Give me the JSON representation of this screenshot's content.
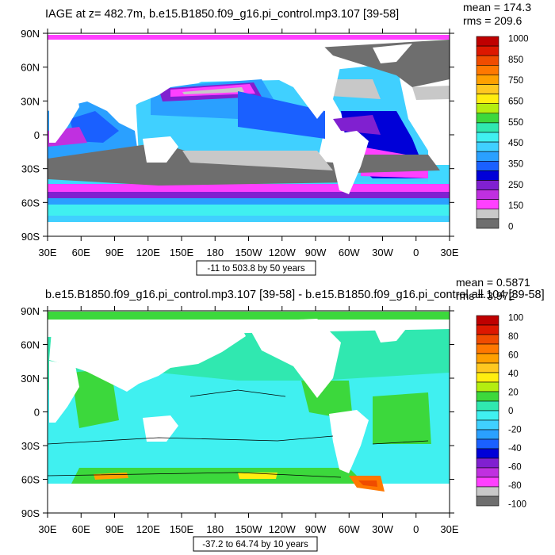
{
  "panels": [
    {
      "title": "IAGE at z= 482.7m, b.e15.B1850.f09_g16.pi_control.mp3.107 [39-58]",
      "stats": [
        "mean = 174.3",
        "rms = 209.6"
      ],
      "contour_info": "-11 to 503.8 by 50 years",
      "colorbar_labels": [
        "1000",
        "850",
        "750",
        "650",
        "550",
        "450",
        "350",
        "250",
        "150",
        "0"
      ],
      "colors": [
        "#bf0000",
        "#dd1800",
        "#f04c00",
        "#ff7800",
        "#ffa000",
        "#ffc820",
        "#ffee10",
        "#b4ee10",
        "#3cd83c",
        "#30e8b0",
        "#40f0f0",
        "#40d0ff",
        "#2aa0ff",
        "#1a60ff",
        "#0000d8",
        "#8020d0",
        "#c030e0",
        "#ff40ff",
        "#c8c8c8",
        "#6e6e6e"
      ]
    },
    {
      "title": "b.e15.B1850.f09_g16.pi_control.mp3.107 [39-58] - b.e15.B1850.f09_g16.pi_control.all.104 [39-58]",
      "stats": [
        "mean = 0.5871",
        "rms = 3.972"
      ],
      "contour_info": "-37.2 to 64.74 by 10 years",
      "colorbar_labels": [
        "100",
        "80",
        "60",
        "40",
        "20",
        "0",
        "-20",
        "-40",
        "-60",
        "-80",
        "-100"
      ],
      "colors": [
        "#bf0000",
        "#dd1800",
        "#f04c00",
        "#ff7800",
        "#ffa000",
        "#ffc820",
        "#ffee10",
        "#b4ee10",
        "#3cd83c",
        "#30e8b0",
        "#40f0f0",
        "#40d0ff",
        "#2aa0ff",
        "#1a60ff",
        "#0000d8",
        "#8020d0",
        "#c030e0",
        "#ff40ff",
        "#c8c8c8",
        "#6e6e6e"
      ]
    }
  ],
  "axes": {
    "lat_labels": [
      "90N",
      "60N",
      "30N",
      "0",
      "30S",
      "60S",
      "90S"
    ],
    "lon_labels": [
      "30E",
      "60E",
      "90E",
      "120E",
      "150E",
      "180",
      "150W",
      "120W",
      "90W",
      "60W",
      "30W",
      "0",
      "30E"
    ]
  },
  "chart_data": [
    {
      "type": "heatmap",
      "title": "IAGE at z= 482.7m, b.e15.B1850.f09_g16.pi_control.mp3.107 [39-58]",
      "x_ticks": [
        "30E",
        "60E",
        "90E",
        "120E",
        "150E",
        "180",
        "150W",
        "120W",
        "90W",
        "60W",
        "30W",
        "0",
        "30E"
      ],
      "y_ticks": [
        "90N",
        "60N",
        "30N",
        "0",
        "30S",
        "60S",
        "90S"
      ],
      "xlim": [
        30,
        390
      ],
      "ylim": [
        -90,
        90
      ],
      "colorbar_ticks": [
        1000,
        850,
        750,
        650,
        550,
        450,
        350,
        250,
        150,
        0
      ],
      "stats": {
        "mean": 174.3,
        "rms": 209.6
      },
      "contour_range": [
        -11,
        503.8
      ],
      "contour_interval": 50
    },
    {
      "type": "heatmap",
      "title": "b.e15.B1850.f09_g16.pi_control.mp3.107 [39-58] - b.e15.B1850.f09_g16.pi_control.all.104 [39-58]",
      "x_ticks": [
        "30E",
        "60E",
        "90E",
        "120E",
        "150E",
        "180",
        "150W",
        "120W",
        "90W",
        "60W",
        "30W",
        "0",
        "30E"
      ],
      "y_ticks": [
        "90N",
        "60N",
        "30N",
        "0",
        "30S",
        "60S",
        "90S"
      ],
      "xlim": [
        30,
        390
      ],
      "ylim": [
        -90,
        90
      ],
      "colorbar_ticks": [
        100,
        80,
        60,
        40,
        20,
        0,
        -20,
        -40,
        -60,
        -80,
        -100
      ],
      "stats": {
        "mean": 0.5871,
        "rms": 3.972
      },
      "contour_range": [
        -37.2,
        64.74
      ],
      "contour_interval": 10
    }
  ]
}
